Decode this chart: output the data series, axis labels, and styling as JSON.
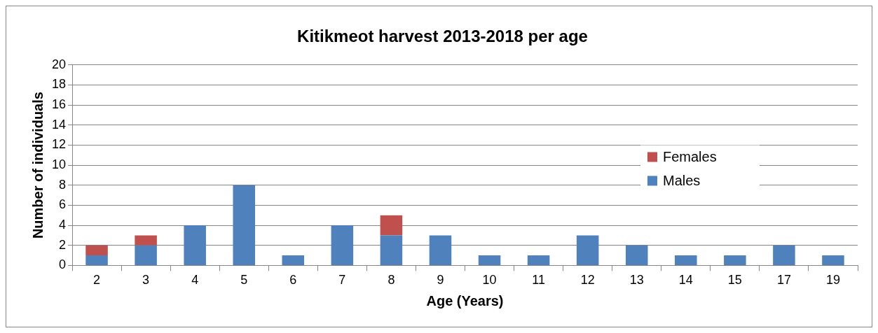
{
  "chart_data": {
    "type": "bar",
    "title": "Kitikmeot harvest 2013-2018 per age",
    "xlabel": "Age (Years)",
    "ylabel": "Number of individuals",
    "categories": [
      "2",
      "3",
      "4",
      "5",
      "6",
      "7",
      "8",
      "9",
      "10",
      "11",
      "12",
      "13",
      "14",
      "15",
      "17",
      "19"
    ],
    "series": [
      {
        "name": "Males",
        "color": "#4f81bd",
        "values": [
          1,
          2,
          4,
          8,
          1,
          4,
          3,
          3,
          1,
          1,
          3,
          2,
          1,
          1,
          2,
          1
        ]
      },
      {
        "name": "Females",
        "color": "#c0504d",
        "values": [
          1,
          1,
          0,
          0,
          0,
          0,
          2,
          0,
          0,
          0,
          0,
          0,
          0,
          0,
          0,
          0
        ]
      }
    ],
    "stacked": true,
    "ylim": [
      0,
      20
    ],
    "yticks": [
      0,
      2,
      4,
      6,
      8,
      10,
      12,
      14,
      16,
      18,
      20
    ],
    "grid": "y",
    "legend": "right"
  }
}
